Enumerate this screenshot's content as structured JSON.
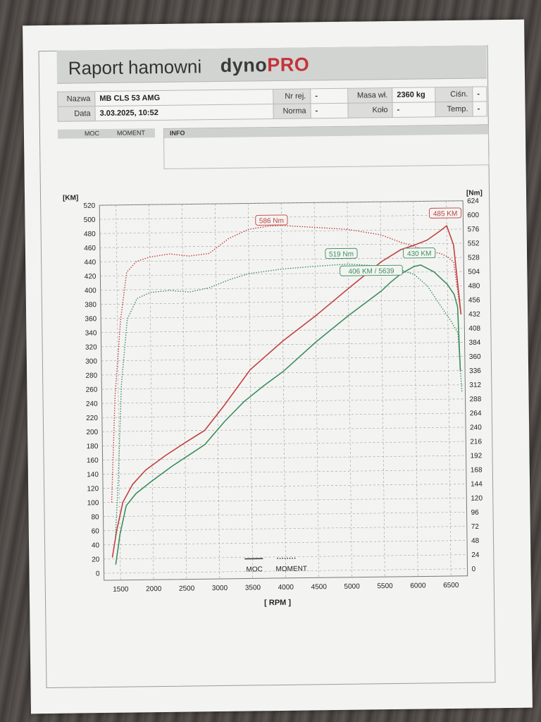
{
  "header": {
    "title": "Raport hamowni",
    "brand_main": "dyno",
    "brand_accent": "PRO"
  },
  "info": {
    "nazwa_label": "Nazwa",
    "nazwa_value": "MB CLS 53 AMG",
    "nr_rej_label": "Nr rej.",
    "nr_rej_value": "-",
    "masa_label": "Masa wł.",
    "masa_value": "2360 kg",
    "cisn_label": "Ciśn.",
    "cisn_value": "-",
    "data_label": "Data",
    "data_value": "3.03.2025, 10:52",
    "norma_label": "Norma",
    "norma_value": "-",
    "kolo_label": "Koło",
    "kolo_value": "-",
    "temp_label": "Temp.",
    "temp_value": "-"
  },
  "tabs": {
    "moc": "MOC",
    "moment": "MOMENT"
  },
  "info_box": {
    "label": "INFO"
  },
  "colors": {
    "red": "#c2403f",
    "green": "#3e8c5d",
    "grid": "#9a9a9a"
  },
  "chart_data": {
    "type": "line",
    "xlabel": "[ RPM ]",
    "ylabel": "[KM]",
    "y2label": "[Nm]",
    "xlim": [
      1250,
      6750
    ],
    "ylim": [
      -10,
      520
    ],
    "y2lim": [
      -12,
      624
    ],
    "xticks": [
      1500,
      2000,
      2500,
      3000,
      3500,
      4000,
      4500,
      5000,
      5500,
      6000,
      6500
    ],
    "yticks": [
      0,
      20,
      40,
      60,
      80,
      100,
      120,
      140,
      160,
      180,
      200,
      220,
      240,
      260,
      280,
      300,
      320,
      340,
      360,
      380,
      400,
      420,
      440,
      460,
      480,
      500,
      520
    ],
    "y2ticks": [
      0,
      24,
      48,
      72,
      96,
      120,
      144,
      168,
      192,
      216,
      240,
      264,
      288,
      312,
      336,
      360,
      384,
      408,
      432,
      456,
      480,
      504,
      528,
      552,
      576,
      600,
      624
    ],
    "grid": true,
    "legend": {
      "moc": "MOC",
      "moment": "MOMENT",
      "position": "bottom-center"
    },
    "series": [
      {
        "name": "MOC",
        "group": "red",
        "axis": "left",
        "style": "solid",
        "x": [
          1380,
          1450,
          1550,
          1700,
          1900,
          2200,
          2500,
          2800,
          3100,
          3500,
          4000,
          4500,
          5000,
          5500,
          5800,
          6000,
          6200,
          6400,
          6500,
          6600,
          6700
        ],
        "y": [
          22,
          60,
          100,
          125,
          145,
          165,
          183,
          200,
          235,
          285,
          325,
          360,
          398,
          435,
          452,
          458,
          465,
          478,
          485,
          458,
          360
        ]
      },
      {
        "name": "MOMENT",
        "group": "red",
        "axis": "right",
        "style": "dotted",
        "x": [
          1380,
          1450,
          1550,
          1650,
          1800,
          2000,
          2300,
          2600,
          2900,
          3200,
          3500,
          3800,
          4000,
          4500,
          5000,
          5500,
          5800,
          6000,
          6200,
          6400,
          6500,
          6600,
          6700
        ],
        "y": [
          120,
          300,
          430,
          510,
          528,
          535,
          540,
          536,
          540,
          565,
          580,
          585,
          586,
          582,
          578,
          568,
          555,
          548,
          540,
          535,
          530,
          520,
          430
        ]
      },
      {
        "name": "MOC",
        "group": "green",
        "axis": "left",
        "style": "solid",
        "x": [
          1430,
          1500,
          1600,
          1750,
          2000,
          2300,
          2600,
          2800,
          3100,
          3400,
          3700,
          4000,
          4500,
          5000,
          5500,
          5639,
          5800,
          6000,
          6100,
          6300,
          6500,
          6600,
          6650,
          6680
        ],
        "y": [
          12,
          55,
          95,
          112,
          130,
          150,
          168,
          180,
          212,
          240,
          262,
          282,
          323,
          360,
          394,
          406,
          418,
          428,
          430,
          420,
          402,
          388,
          370,
          280
        ]
      },
      {
        "name": "MOMENT",
        "group": "green",
        "axis": "right",
        "style": "dotted",
        "x": [
          1430,
          1480,
          1550,
          1650,
          1800,
          2000,
          2300,
          2600,
          2900,
          3200,
          3500,
          4000,
          4500,
          5000,
          5500,
          5800,
          6000,
          6200,
          6400,
          6550,
          6650,
          6700
        ],
        "y": [
          60,
          150,
          320,
          430,
          465,
          475,
          478,
          475,
          482,
          495,
          505,
          512,
          516,
          519,
          515,
          508,
          500,
          480,
          445,
          420,
          400,
          300
        ]
      }
    ],
    "annotations": [
      {
        "text": "586 Nm",
        "group": "red",
        "x": 3850,
        "y": 594
      },
      {
        "text": "485 KM",
        "group": "red",
        "x": 6480,
        "y": 502
      },
      {
        "text": "519 Nm",
        "group": "green",
        "x": 4900,
        "y": 536
      },
      {
        "text": "430 KM",
        "group": "green",
        "x": 6080,
        "y": 446
      },
      {
        "text": "406 KM / 5639",
        "group": "green",
        "x": 5350,
        "y": 422
      }
    ]
  }
}
